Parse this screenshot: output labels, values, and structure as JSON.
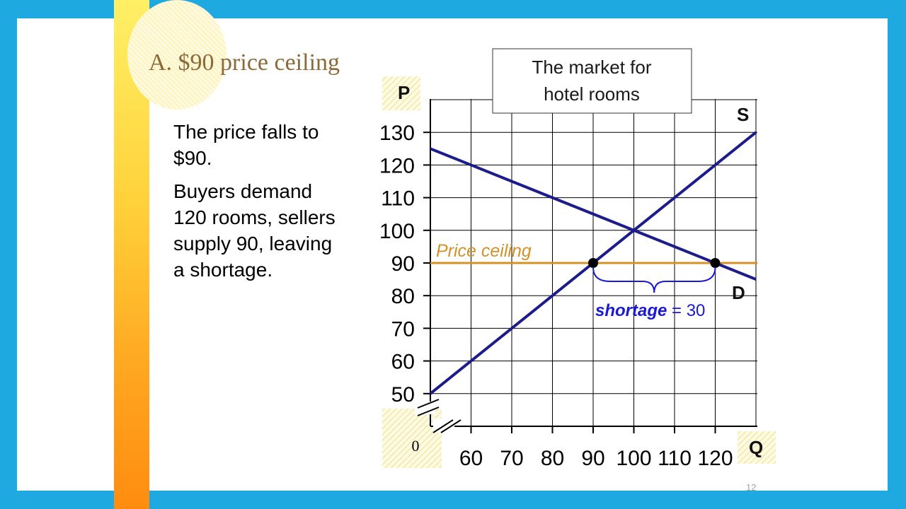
{
  "slide": {
    "title": "A.  $90 price ceiling",
    "paragraph1": "The price falls to $90.",
    "paragraph2": "Buyers demand 120 rooms, sellers supply 90, leaving a shortage.",
    "slide_number": "12"
  },
  "colors": {
    "background": "#1fa9e1",
    "curves": "#1c1c8c",
    "ceiling": "#d4912a",
    "shortage": "#1a1ad6",
    "title": "#8b6a38"
  },
  "chart_data": {
    "type": "line",
    "title": "The market for hotel rooms",
    "xlabel": "Q",
    "ylabel": "P",
    "origin_label": "0",
    "xlim": [
      50,
      130
    ],
    "ylim": [
      40,
      140
    ],
    "xticks": [
      60,
      70,
      80,
      90,
      100,
      110,
      120
    ],
    "yticks": [
      50,
      60,
      70,
      80,
      90,
      100,
      110,
      120,
      130
    ],
    "grid": true,
    "axis_breaks": true,
    "series": [
      {
        "name": "S",
        "x": [
          50,
          130
        ],
        "y": [
          50,
          130
        ]
      },
      {
        "name": "D",
        "x": [
          50,
          130
        ],
        "y": [
          125,
          85
        ]
      }
    ],
    "price_ceiling": {
      "label": "Price ceiling",
      "value": 90
    },
    "points": [
      {
        "x": 90,
        "y": 90
      },
      {
        "x": 120,
        "y": 90
      }
    ],
    "annotation": {
      "label_bold": "shortage",
      "label_rest": "= 30",
      "from": 90,
      "to": 120
    }
  }
}
